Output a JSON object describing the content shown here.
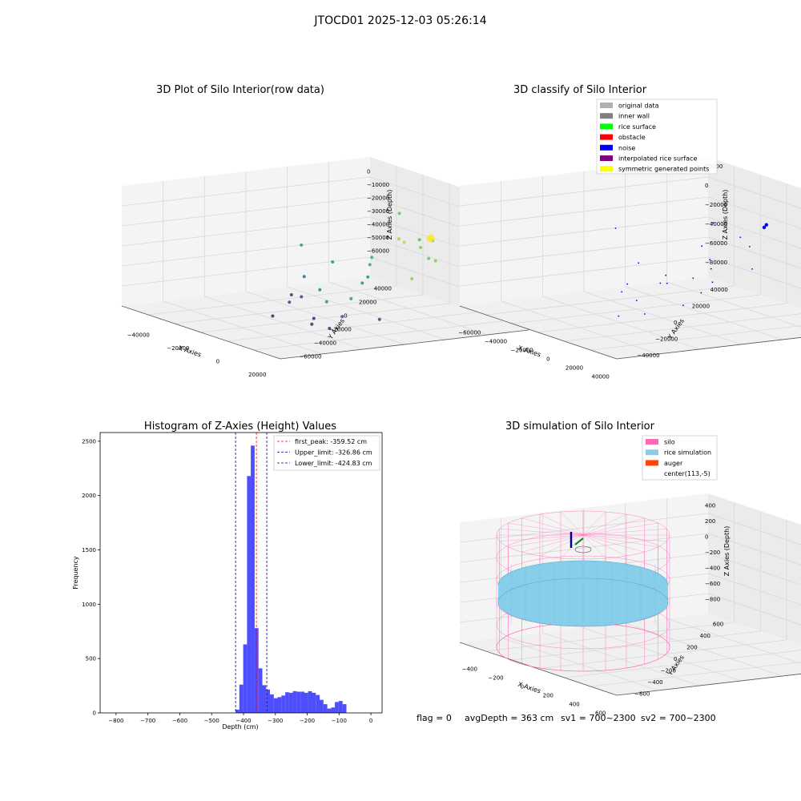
{
  "figure": {
    "suptitle": "JTOCD01 2025-12-03 05:26:14",
    "footer": {
      "flag": "flag = 0",
      "avg_depth": "avgDepth = 363 cm",
      "sv1": "sv1 = 700~2300",
      "sv2": "sv2 = 700~2300"
    }
  },
  "chart_data": [
    {
      "id": "raw",
      "type": "scatter",
      "title": "3D Plot of Silo Interior(row data)",
      "xlabel": "X Axies",
      "ylabel": "Y Axies",
      "zlabel": "Z Axies (Depth)",
      "x_ticks": [
        "−40000",
        "−20000",
        "0",
        "20000"
      ],
      "y_ticks": [
        "−60000",
        "−40000",
        "−20000",
        "0",
        "20000",
        "40000"
      ],
      "z_ticks": [
        "0",
        "−10000",
        "−20000",
        "−30000",
        "−40000",
        "−50000",
        "−60000"
      ],
      "colormap": "viridis",
      "points": [
        {
          "x": -45000,
          "y": 10000,
          "z": -40000,
          "c": 0.55
        },
        {
          "x": -20000,
          "y": 35000,
          "z": -15000,
          "c": 0.75
        },
        {
          "x": -8000,
          "y": 25000,
          "z": -25000,
          "c": 0.85
        },
        {
          "x": -5000,
          "y": 25000,
          "z": -26000,
          "c": 0.9
        },
        {
          "x": 0,
          "y": 28000,
          "z": -23000,
          "c": 0.7
        },
        {
          "x": 5000,
          "y": 30000,
          "z": -22000,
          "c": 0.6
        },
        {
          "x": 8000,
          "y": 22000,
          "z": -24000,
          "c": 0.8
        },
        {
          "x": 10000,
          "y": 25000,
          "z": -18000,
          "c": 1.0,
          "size": 5
        },
        {
          "x": 15000,
          "y": 20000,
          "z": -28000,
          "c": 0.75
        },
        {
          "x": 25000,
          "y": 15000,
          "z": -25000,
          "c": 0.8
        },
        {
          "x": 30000,
          "y": 0,
          "z": -32000,
          "c": 0.82
        },
        {
          "x": -5000,
          "y": 10000,
          "z": -33000,
          "c": 0.62
        },
        {
          "x": 0,
          "y": 5000,
          "z": -35000,
          "c": 0.58
        },
        {
          "x": -15000,
          "y": 0,
          "z": -38000,
          "c": 0.5
        },
        {
          "x": 5000,
          "y": 0,
          "z": -40000,
          "c": 0.48
        },
        {
          "x": 8000,
          "y": -5000,
          "z": -42000,
          "c": 0.5
        },
        {
          "x": 20000,
          "y": -20000,
          "z": -45000,
          "c": 0.55
        },
        {
          "x": -25000,
          "y": -5000,
          "z": -50000,
          "c": 0.35
        },
        {
          "x": -10000,
          "y": -10000,
          "z": -52000,
          "c": 0.45
        },
        {
          "x": 0,
          "y": -15000,
          "z": -55000,
          "c": 0.5
        },
        {
          "x": 15000,
          "y": -20000,
          "z": -58000,
          "c": 0.25
        },
        {
          "x": -20000,
          "y": -15000,
          "z": -58000,
          "c": 0.15
        },
        {
          "x": -18000,
          "y": -12000,
          "z": -59000,
          "c": 0.2
        },
        {
          "x": -15000,
          "y": -20000,
          "z": -60000,
          "c": 0.2
        },
        {
          "x": 5000,
          "y": -25000,
          "z": -62000,
          "c": 0.1
        },
        {
          "x": 10000,
          "y": -30000,
          "z": -63000,
          "c": 0.12
        },
        {
          "x": 20000,
          "y": -30000,
          "z": -62000,
          "c": 0.15
        },
        {
          "x": 30000,
          "y": -15000,
          "z": -55000,
          "c": 0.2
        },
        {
          "x": 0,
          "y": -40000,
          "z": -60000,
          "c": 0.1
        }
      ]
    },
    {
      "id": "classify",
      "type": "scatter",
      "title": "3D classify of Silo Interior",
      "xlabel": "X Axies",
      "ylabel": "Y Axies",
      "zlabel": "Z Axies (Depth)",
      "x_ticks": [
        "−60000",
        "−40000",
        "−20000",
        "0",
        "20000",
        "40000"
      ],
      "y_ticks": [
        "−40000",
        "−20000",
        "0",
        "20000",
        "40000"
      ],
      "z_ticks": [
        "20000",
        "0",
        "−20000",
        "−40000",
        "−60000",
        "−80000"
      ],
      "legend": [
        {
          "label": "original data",
          "color": "#b0b0b0"
        },
        {
          "label": "inner wall",
          "color": "#808080"
        },
        {
          "label": "rice surface",
          "color": "#00ff00"
        },
        {
          "label": "obstacle",
          "color": "#ff0000"
        },
        {
          "label": "noise",
          "color": "#0000ff"
        },
        {
          "label": "interpolated rice surface",
          "color": "#800080"
        },
        {
          "label": "symmetric generated points",
          "color": "#ffff00"
        }
      ],
      "points": [
        {
          "x": -65000,
          "y": 10000,
          "z": -30000
        },
        {
          "x": -30000,
          "y": 30000,
          "z": -15000
        },
        {
          "x": -10000,
          "y": 30000,
          "z": -20000
        },
        {
          "x": 0,
          "y": 35000,
          "z": -5000,
          "size": 4
        },
        {
          "x": 2000,
          "y": 33000,
          "z": -6000,
          "size": 4
        },
        {
          "x": 15000,
          "y": 20000,
          "z": -15000
        },
        {
          "x": 35000,
          "y": 10000,
          "z": -25000
        },
        {
          "x": -20000,
          "y": 20000,
          "z": -30000
        },
        {
          "x": -5000,
          "y": 15000,
          "z": -35000
        },
        {
          "x": 5000,
          "y": 10000,
          "z": -38000
        },
        {
          "x": 10000,
          "y": 0,
          "z": -42000
        },
        {
          "x": 25000,
          "y": -5000,
          "z": -48000
        },
        {
          "x": -30000,
          "y": 0,
          "z": -45000
        },
        {
          "x": -10000,
          "y": 0,
          "z": -48000
        },
        {
          "x": 0,
          "y": -5000,
          "z": -50000
        },
        {
          "x": -20000,
          "y": -10000,
          "z": -58000
        },
        {
          "x": -15000,
          "y": -15000,
          "z": -62000
        },
        {
          "x": 5000,
          "y": -20000,
          "z": -60000
        },
        {
          "x": 20000,
          "y": -25000,
          "z": -65000
        },
        {
          "x": 10000,
          "y": -30000,
          "z": -70000
        },
        {
          "x": -5000,
          "y": -5000,
          "z": -52000
        },
        {
          "x": 15000,
          "y": 5000,
          "z": -45000
        },
        {
          "x": 30000,
          "y": -15000,
          "z": -55000
        }
      ]
    },
    {
      "id": "hist",
      "type": "bar",
      "title": "Histogram of Z-Axies (Height) Values",
      "xlabel": "Depth (cm)",
      "ylabel": "Frequency",
      "xlim": [
        -850,
        35
      ],
      "ylim": [
        0,
        2580
      ],
      "x_ticks": [
        -800,
        -700,
        -600,
        -500,
        -400,
        -300,
        -200,
        -100,
        0
      ],
      "x_tick_labels": [
        "−800",
        "−700",
        "−600",
        "−500",
        "−400",
        "−300",
        "−200",
        "−100",
        "0"
      ],
      "y_ticks": [
        0,
        500,
        1000,
        1500,
        2000,
        2500
      ],
      "bin_edges": [
        -425,
        -413,
        -401,
        -389,
        -377,
        -365,
        -353,
        -341,
        -329,
        -317,
        -305,
        -293,
        -281,
        -269,
        -257,
        -245,
        -233,
        -221,
        -209,
        -197,
        -185,
        -173,
        -161,
        -149,
        -137,
        -125,
        -113,
        -101,
        -89,
        -77,
        -65,
        -53,
        -41,
        -29,
        -17
      ],
      "values": [
        30,
        260,
        630,
        2180,
        2460,
        780,
        410,
        255,
        215,
        170,
        135,
        145,
        160,
        190,
        185,
        200,
        195,
        195,
        185,
        200,
        185,
        165,
        120,
        80,
        40,
        50,
        100,
        110,
        80,
        0,
        0,
        0,
        0,
        0
      ],
      "bar_color": "#4444ff",
      "lines": [
        {
          "label": "first_peak: -359.52 cm",
          "x": -359.52,
          "color": "#ff0000"
        },
        {
          "label": "Upper_limit: -326.86 cm",
          "x": -326.86,
          "color": "#00008b"
        },
        {
          "label": "Lower_limit: -424.83 cm",
          "x": -424.83,
          "color": "#00008b"
        }
      ]
    },
    {
      "id": "sim",
      "type": "3d-surface",
      "title": "3D simulation of Silo Interior",
      "xlabel": "X Axies",
      "ylabel": "Y Axies",
      "zlabel": "Z Axies (Depth)",
      "x_ticks": [
        "−400",
        "−200",
        "0",
        "200",
        "400",
        "600"
      ],
      "y_ticks": [
        "−600",
        "−400",
        "−200",
        "0",
        "200",
        "400",
        "600"
      ],
      "z_ticks": [
        "400",
        "200",
        "0",
        "−200",
        "−400",
        "−600",
        "−800"
      ],
      "legend": [
        {
          "label": "silo",
          "color": "#ff69b4"
        },
        {
          "label": "rice simulation",
          "color": "#87ceeb"
        },
        {
          "label": "auger",
          "color": "#ff4500"
        },
        {
          "label": "center(113,-5)",
          "color": ""
        }
      ],
      "silo": {
        "center_x": 113,
        "center_y": -5,
        "radius": 700,
        "z_top": 0,
        "z_bottom": -900
      },
      "rice_depth": -363
    }
  ]
}
